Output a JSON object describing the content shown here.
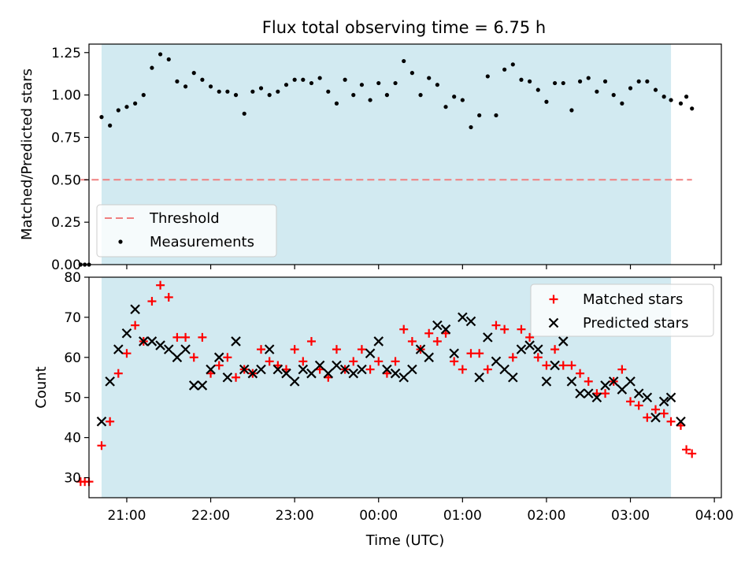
{
  "figure": {
    "title": "Flux total observing time = 6.75 h",
    "xlabel": "Time (UTC)"
  },
  "colors": {
    "shade": "#add8e6",
    "threshold": "#f08080",
    "matched": "#ff0000",
    "predicted": "#000000",
    "measurement": "#000000"
  },
  "chart_data": [
    {
      "type": "scatter",
      "ylabel": "Matched/Predicted stars",
      "ylim": [
        0,
        1.3
      ],
      "yticks": [
        0,
        0.25,
        0.5,
        0.75,
        1.0,
        1.25
      ],
      "ytick_labels": [
        "0.00",
        "0.25",
        "0.50",
        "0.75",
        "1.00",
        "1.25"
      ],
      "xlim": [
        "20:33",
        "04:05"
      ],
      "shaded_region": [
        "20:42",
        "03:29"
      ],
      "legend_position": "lower-left",
      "threshold": {
        "name": "Threshold",
        "y": 0.5,
        "x_range": [
          "20:27",
          "03:44"
        ]
      },
      "series": [
        {
          "name": "Measurements",
          "x": [
            "20:27",
            "20:30",
            "20:33",
            "20:42",
            "20:48",
            "20:54",
            "21:00",
            "21:06",
            "21:12",
            "21:18",
            "21:24",
            "21:30",
            "21:36",
            "21:42",
            "21:48",
            "21:54",
            "22:00",
            "22:06",
            "22:12",
            "22:18",
            "22:24",
            "22:30",
            "22:36",
            "22:42",
            "22:48",
            "22:54",
            "23:00",
            "23:06",
            "23:12",
            "23:18",
            "23:24",
            "23:30",
            "23:36",
            "23:42",
            "23:48",
            "23:54",
            "00:00",
            "00:06",
            "00:12",
            "00:18",
            "00:24",
            "00:30",
            "00:36",
            "00:42",
            "00:48",
            "00:54",
            "01:00",
            "01:06",
            "01:12",
            "01:18",
            "01:24",
            "01:30",
            "01:36",
            "01:42",
            "01:48",
            "01:54",
            "02:00",
            "02:06",
            "02:12",
            "02:18",
            "02:24",
            "02:30",
            "02:36",
            "02:42",
            "02:48",
            "02:54",
            "03:00",
            "03:06",
            "03:12",
            "03:18",
            "03:24",
            "03:29",
            "03:36",
            "03:40",
            "03:44"
          ],
          "y": [
            0,
            0,
            0,
            0.87,
            0.82,
            0.91,
            0.93,
            0.95,
            1.0,
            1.16,
            1.24,
            1.21,
            1.08,
            1.05,
            1.13,
            1.09,
            1.05,
            1.02,
            1.02,
            1.0,
            0.89,
            1.02,
            1.04,
            1.0,
            1.02,
            1.06,
            1.09,
            1.09,
            1.07,
            1.1,
            1.02,
            0.95,
            1.09,
            1.0,
            1.06,
            0.97,
            1.07,
            1.0,
            1.07,
            1.2,
            1.13,
            1.0,
            1.1,
            1.06,
            0.93,
            0.99,
            0.97,
            0.81,
            0.88,
            1.11,
            0.88,
            1.15,
            1.18,
            1.09,
            1.08,
            1.03,
            0.96,
            1.07,
            1.07,
            0.91,
            1.08,
            1.1,
            1.02,
            1.08,
            1.0,
            0.95,
            1.04,
            1.08,
            1.08,
            1.03,
            0.99,
            0.97,
            0.95,
            0.99,
            0.92
          ]
        }
      ]
    },
    {
      "type": "scatter",
      "ylabel": "Count",
      "ylim": [
        25,
        80
      ],
      "yticks": [
        30,
        40,
        50,
        60,
        70,
        80
      ],
      "xlim": [
        "20:33",
        "04:05"
      ],
      "xticks": [
        "21:00",
        "22:00",
        "23:00",
        "00:00",
        "01:00",
        "02:00",
        "03:00",
        "04:00"
      ],
      "shaded_region": [
        "20:42",
        "03:29"
      ],
      "legend_position": "top-right",
      "series": [
        {
          "name": "Matched stars",
          "marker": "plus",
          "x": [
            "20:27",
            "20:30",
            "20:33",
            "20:42",
            "20:48",
            "20:54",
            "21:00",
            "21:06",
            "21:12",
            "21:18",
            "21:24",
            "21:30",
            "21:36",
            "21:42",
            "21:48",
            "21:54",
            "22:00",
            "22:06",
            "22:12",
            "22:18",
            "22:24",
            "22:30",
            "22:36",
            "22:42",
            "22:48",
            "22:54",
            "23:00",
            "23:06",
            "23:12",
            "23:18",
            "23:24",
            "23:30",
            "23:36",
            "23:42",
            "23:48",
            "23:54",
            "00:00",
            "00:06",
            "00:12",
            "00:18",
            "00:24",
            "00:30",
            "00:36",
            "00:42",
            "00:48",
            "00:54",
            "01:00",
            "01:06",
            "01:12",
            "01:18",
            "01:24",
            "01:30",
            "01:36",
            "01:42",
            "01:48",
            "01:54",
            "02:00",
            "02:06",
            "02:12",
            "02:18",
            "02:24",
            "02:30",
            "02:36",
            "02:42",
            "02:48",
            "02:54",
            "03:00",
            "03:06",
            "03:12",
            "03:18",
            "03:24",
            "03:29",
            "03:36",
            "03:40",
            "03:44"
          ],
          "y": [
            29,
            29,
            29,
            38,
            44,
            56,
            61,
            68,
            64,
            74,
            78,
            75,
            65,
            65,
            60,
            65,
            56,
            58,
            60,
            55,
            57,
            56,
            62,
            59,
            58,
            57,
            62,
            59,
            64,
            57,
            55,
            62,
            57,
            59,
            62,
            57,
            59,
            56,
            59,
            67,
            64,
            62,
            66,
            64,
            66,
            59,
            57,
            61,
            61,
            57,
            68,
            67,
            60,
            67,
            65,
            60,
            58,
            62,
            58,
            58,
            56,
            54,
            51,
            51,
            54,
            57,
            49,
            48,
            45,
            47,
            46,
            44,
            43,
            37,
            36
          ]
        },
        {
          "name": "Predicted stars",
          "marker": "x",
          "x": [
            "20:42",
            "20:48",
            "20:54",
            "21:00",
            "21:06",
            "21:12",
            "21:18",
            "21:24",
            "21:30",
            "21:36",
            "21:42",
            "21:48",
            "21:54",
            "22:00",
            "22:06",
            "22:12",
            "22:18",
            "22:24",
            "22:30",
            "22:36",
            "22:42",
            "22:48",
            "22:54",
            "23:00",
            "23:06",
            "23:12",
            "23:18",
            "23:24",
            "23:30",
            "23:36",
            "23:42",
            "23:48",
            "23:54",
            "00:00",
            "00:06",
            "00:12",
            "00:18",
            "00:24",
            "00:30",
            "00:36",
            "00:42",
            "00:48",
            "00:54",
            "01:00",
            "01:06",
            "01:12",
            "01:18",
            "01:24",
            "01:30",
            "01:36",
            "01:42",
            "01:48",
            "01:54",
            "02:00",
            "02:06",
            "02:12",
            "02:18",
            "02:24",
            "02:30",
            "02:36",
            "02:42",
            "02:48",
            "02:54",
            "03:00",
            "03:06",
            "03:12",
            "03:18",
            "03:24",
            "03:29",
            "03:36"
          ],
          "y": [
            44,
            54,
            62,
            66,
            72,
            64,
            64,
            63,
            62,
            60,
            62,
            53,
            53,
            57,
            60,
            55,
            64,
            57,
            56,
            57,
            62,
            57,
            56,
            54,
            57,
            56,
            58,
            56,
            58,
            57,
            56,
            57,
            61,
            64,
            57,
            56,
            55,
            57,
            62,
            60,
            68,
            67,
            61,
            70,
            69,
            55,
            65,
            59,
            57,
            55,
            62,
            63,
            62,
            54,
            58,
            64,
            54,
            51,
            51,
            50,
            53,
            54,
            52,
            54,
            51,
            50,
            45,
            49,
            50,
            44
          ]
        }
      ]
    }
  ]
}
